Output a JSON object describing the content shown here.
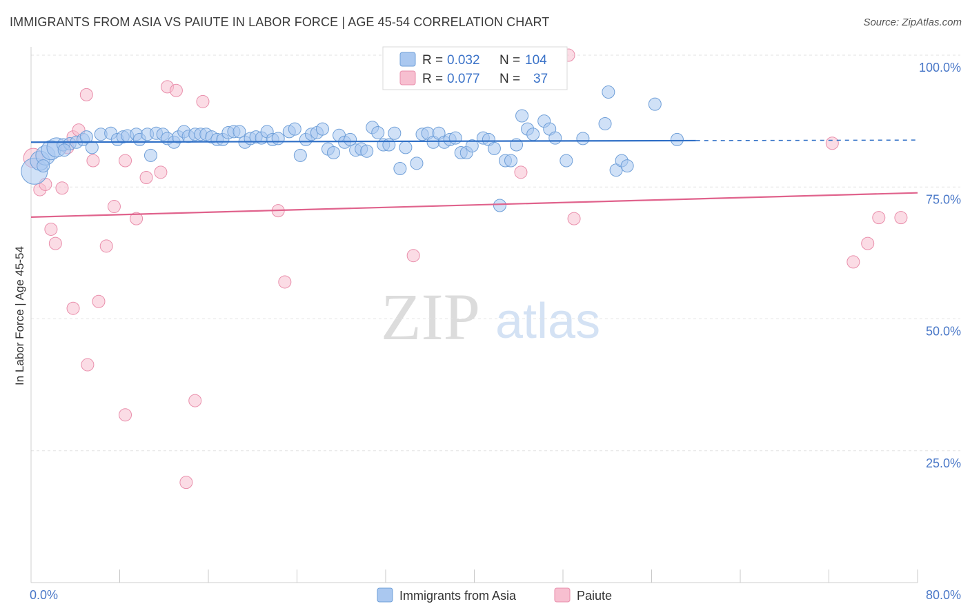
{
  "header": {
    "title": "IMMIGRANTS FROM ASIA VS PAIUTE IN LABOR FORCE | AGE 45-54 CORRELATION CHART",
    "source": "Source: ZipAtlas.com"
  },
  "watermark": {
    "zip": "ZIP",
    "atlas": "atlas"
  },
  "colors": {
    "blue_fill": "#aac8f0",
    "blue_stroke": "#6f9fd8",
    "blue_line": "#2f6fc6",
    "pink_fill": "#f7bfd0",
    "pink_stroke": "#e98eab",
    "pink_line": "#e0628c",
    "label_blue": "#4a78c8"
  },
  "chart_data": {
    "type": "scatter",
    "title": "IMMIGRANTS FROM ASIA VS PAIUTE IN LABOR FORCE | AGE 45-54 CORRELATION CHART",
    "xlabel": "",
    "ylabel": "In Labor Force | Age 45-54",
    "xlim": [
      0,
      80
    ],
    "ylim": [
      0,
      100
    ],
    "x_tick_labels": [
      "0.0%",
      "80.0%"
    ],
    "y_ticks": [
      100,
      75,
      50,
      25
    ],
    "y_tick_labels": [
      "100.0%",
      "75.0%",
      "50.0%",
      "25.0%"
    ],
    "legend": [
      {
        "name": "Immigrants from Asia",
        "r_label": "R =",
        "r_value": "0.032",
        "n_label": "N =",
        "n_value": "104"
      },
      {
        "name": "Paiute",
        "r_label": "R =",
        "r_value": "0.077",
        "n_label": "N =",
        "n_value": "37"
      }
    ],
    "series": [
      {
        "name": "Immigrants from Asia",
        "trend": {
          "x0": 0,
          "y0": 83.5,
          "x1": 80,
          "y1": 83.9,
          "solid_until": 60
        },
        "points": [
          {
            "x": 0.3,
            "y": 78,
            "s": 3
          },
          {
            "x": 0.8,
            "y": 80,
            "s": 2
          },
          {
            "x": 1.3,
            "y": 81,
            "s": 2
          },
          {
            "x": 1.8,
            "y": 82,
            "s": 2
          },
          {
            "x": 2.3,
            "y": 82.5,
            "s": 2
          },
          {
            "x": 2.9,
            "y": 83,
            "s": 1
          },
          {
            "x": 3.5,
            "y": 83.2,
            "s": 1
          },
          {
            "x": 4.1,
            "y": 83.5,
            "s": 1
          },
          {
            "x": 4.7,
            "y": 84,
            "s": 1
          },
          {
            "x": 5.5,
            "y": 82.5,
            "s": 1
          },
          {
            "x": 6.3,
            "y": 85,
            "s": 1
          },
          {
            "x": 7.2,
            "y": 85.2,
            "s": 1
          },
          {
            "x": 7.8,
            "y": 84,
            "s": 1
          },
          {
            "x": 8.3,
            "y": 84.5,
            "s": 1
          },
          {
            "x": 8.7,
            "y": 84.7,
            "s": 1
          },
          {
            "x": 9.5,
            "y": 85,
            "s": 1
          },
          {
            "x": 9.8,
            "y": 84,
            "s": 1
          },
          {
            "x": 10.5,
            "y": 85,
            "s": 1
          },
          {
            "x": 10.8,
            "y": 81,
            "s": 1
          },
          {
            "x": 11.3,
            "y": 85.2,
            "s": 1
          },
          {
            "x": 11.9,
            "y": 85,
            "s": 1
          },
          {
            "x": 12.3,
            "y": 84.2,
            "s": 1
          },
          {
            "x": 12.9,
            "y": 83.5,
            "s": 1
          },
          {
            "x": 13.3,
            "y": 84.5,
            "s": 1
          },
          {
            "x": 13.8,
            "y": 85.5,
            "s": 1
          },
          {
            "x": 14.2,
            "y": 84.6,
            "s": 1
          },
          {
            "x": 14.8,
            "y": 85,
            "s": 1
          },
          {
            "x": 15.3,
            "y": 85,
            "s": 1
          },
          {
            "x": 15.8,
            "y": 85,
            "s": 1
          },
          {
            "x": 16.3,
            "y": 84.5,
            "s": 1
          },
          {
            "x": 16.8,
            "y": 84,
            "s": 1
          },
          {
            "x": 17.3,
            "y": 84,
            "s": 1
          },
          {
            "x": 17.8,
            "y": 85.3,
            "s": 1
          },
          {
            "x": 18.3,
            "y": 85.5,
            "s": 1
          },
          {
            "x": 18.8,
            "y": 85.5,
            "s": 1
          },
          {
            "x": 19.3,
            "y": 83.5,
            "s": 1
          },
          {
            "x": 19.8,
            "y": 84.2,
            "s": 1
          },
          {
            "x": 20.3,
            "y": 84.5,
            "s": 1
          },
          {
            "x": 20.8,
            "y": 84.3,
            "s": 1
          },
          {
            "x": 21.3,
            "y": 85.5,
            "s": 1
          },
          {
            "x": 21.8,
            "y": 84,
            "s": 1
          },
          {
            "x": 22.3,
            "y": 84.2,
            "s": 1
          },
          {
            "x": 23.3,
            "y": 85.5,
            "s": 1
          },
          {
            "x": 23.8,
            "y": 86,
            "s": 1
          },
          {
            "x": 24.3,
            "y": 81,
            "s": 1
          },
          {
            "x": 24.8,
            "y": 84,
            "s": 1
          },
          {
            "x": 25.3,
            "y": 85,
            "s": 1
          },
          {
            "x": 25.8,
            "y": 85.3,
            "s": 1
          },
          {
            "x": 26.3,
            "y": 86,
            "s": 1
          },
          {
            "x": 26.8,
            "y": 82.2,
            "s": 1
          },
          {
            "x": 27.3,
            "y": 81.5,
            "s": 1
          },
          {
            "x": 27.8,
            "y": 84.8,
            "s": 1
          },
          {
            "x": 28.3,
            "y": 83.5,
            "s": 1
          },
          {
            "x": 28.8,
            "y": 84,
            "s": 1
          },
          {
            "x": 29.3,
            "y": 82,
            "s": 1
          },
          {
            "x": 29.8,
            "y": 82.2,
            "s": 1
          },
          {
            "x": 30.3,
            "y": 81.8,
            "s": 1
          },
          {
            "x": 30.8,
            "y": 86.3,
            "s": 1
          },
          {
            "x": 31.3,
            "y": 85.3,
            "s": 1
          },
          {
            "x": 31.8,
            "y": 83,
            "s": 1
          },
          {
            "x": 32.3,
            "y": 83,
            "s": 1
          },
          {
            "x": 32.8,
            "y": 85.2,
            "s": 1
          },
          {
            "x": 33.3,
            "y": 78.5,
            "s": 1
          },
          {
            "x": 33.8,
            "y": 82.5,
            "s": 1
          },
          {
            "x": 34.8,
            "y": 79.5,
            "s": 1
          },
          {
            "x": 35.3,
            "y": 85,
            "s": 1
          },
          {
            "x": 35.8,
            "y": 85.2,
            "s": 1
          },
          {
            "x": 36.3,
            "y": 83.5,
            "s": 1
          },
          {
            "x": 36.8,
            "y": 85.2,
            "s": 1
          },
          {
            "x": 37.3,
            "y": 83.5,
            "s": 1
          },
          {
            "x": 37.8,
            "y": 84,
            "s": 1
          },
          {
            "x": 38.3,
            "y": 84.3,
            "s": 1
          },
          {
            "x": 38.8,
            "y": 81.5,
            "s": 1
          },
          {
            "x": 39.3,
            "y": 81.5,
            "s": 1
          },
          {
            "x": 39.8,
            "y": 82.8,
            "s": 1
          },
          {
            "x": 40.8,
            "y": 84.3,
            "s": 1
          },
          {
            "x": 41.3,
            "y": 84,
            "s": 1
          },
          {
            "x": 41.8,
            "y": 82.3,
            "s": 1
          },
          {
            "x": 42.3,
            "y": 71.5,
            "s": 1
          },
          {
            "x": 42.8,
            "y": 80,
            "s": 1
          },
          {
            "x": 43.3,
            "y": 80,
            "s": 1
          },
          {
            "x": 43.8,
            "y": 83,
            "s": 1
          },
          {
            "x": 44.3,
            "y": 88.5,
            "s": 1
          },
          {
            "x": 44.8,
            "y": 86,
            "s": 1
          },
          {
            "x": 45.3,
            "y": 85,
            "s": 1
          },
          {
            "x": 46.3,
            "y": 87.5,
            "s": 1
          },
          {
            "x": 46.8,
            "y": 86,
            "s": 1
          },
          {
            "x": 47.3,
            "y": 84.3,
            "s": 1
          },
          {
            "x": 48.3,
            "y": 80,
            "s": 1
          },
          {
            "x": 49.8,
            "y": 84.2,
            "s": 1
          },
          {
            "x": 51.8,
            "y": 87,
            "s": 1
          },
          {
            "x": 52.1,
            "y": 93,
            "s": 1
          },
          {
            "x": 52.8,
            "y": 78.2,
            "s": 1
          },
          {
            "x": 53.3,
            "y": 80,
            "s": 1
          },
          {
            "x": 53.8,
            "y": 79,
            "s": 1
          },
          {
            "x": 56.3,
            "y": 90.7,
            "s": 1
          },
          {
            "x": 58.3,
            "y": 84,
            "s": 1
          },
          {
            "x": 1.1,
            "y": 79,
            "s": 1
          },
          {
            "x": 3.0,
            "y": 82,
            "s": 1
          },
          {
            "x": 5.0,
            "y": 84.5,
            "s": 1
          }
        ]
      },
      {
        "name": "Paiute",
        "trend": {
          "x0": 0,
          "y0": 69.3,
          "x1": 80,
          "y1": 73.9,
          "solid_until": 80
        },
        "points": [
          {
            "x": 0.2,
            "y": 80.5,
            "s": 2
          },
          {
            "x": 0.8,
            "y": 74.5,
            "s": 1
          },
          {
            "x": 1.3,
            "y": 75.5,
            "s": 1
          },
          {
            "x": 1.8,
            "y": 67,
            "s": 1
          },
          {
            "x": 2.2,
            "y": 64.3,
            "s": 1
          },
          {
            "x": 2.8,
            "y": 74.8,
            "s": 1
          },
          {
            "x": 3.3,
            "y": 82.5,
            "s": 1
          },
          {
            "x": 3.8,
            "y": 84.5,
            "s": 1
          },
          {
            "x": 3.8,
            "y": 52,
            "s": 1
          },
          {
            "x": 4.3,
            "y": 85.8,
            "s": 1
          },
          {
            "x": 5.0,
            "y": 92.5,
            "s": 1
          },
          {
            "x": 5.1,
            "y": 41.3,
            "s": 1
          },
          {
            "x": 5.6,
            "y": 80,
            "s": 1
          },
          {
            "x": 6.1,
            "y": 53.3,
            "s": 1
          },
          {
            "x": 6.8,
            "y": 63.8,
            "s": 1
          },
          {
            "x": 7.5,
            "y": 71.3,
            "s": 1
          },
          {
            "x": 8.5,
            "y": 80,
            "s": 1
          },
          {
            "x": 8.5,
            "y": 31.8,
            "s": 1
          },
          {
            "x": 9.5,
            "y": 69,
            "s": 1
          },
          {
            "x": 10.4,
            "y": 76.8,
            "s": 1
          },
          {
            "x": 11.7,
            "y": 77.8,
            "s": 1
          },
          {
            "x": 12.3,
            "y": 94,
            "s": 1
          },
          {
            "x": 13.1,
            "y": 93.3,
            "s": 1
          },
          {
            "x": 14.0,
            "y": 19,
            "s": 1
          },
          {
            "x": 14.8,
            "y": 34.5,
            "s": 1
          },
          {
            "x": 15.5,
            "y": 91.2,
            "s": 1
          },
          {
            "x": 22.3,
            "y": 70.5,
            "s": 1
          },
          {
            "x": 22.9,
            "y": 57,
            "s": 1
          },
          {
            "x": 34.5,
            "y": 62,
            "s": 1
          },
          {
            "x": 44.2,
            "y": 77.8,
            "s": 1
          },
          {
            "x": 48.5,
            "y": 100,
            "s": 1
          },
          {
            "x": 49.0,
            "y": 69,
            "s": 1
          },
          {
            "x": 72.3,
            "y": 83.3,
            "s": 1
          },
          {
            "x": 74.2,
            "y": 60.8,
            "s": 1
          },
          {
            "x": 75.5,
            "y": 64.3,
            "s": 1
          },
          {
            "x": 76.5,
            "y": 69.2,
            "s": 1
          },
          {
            "x": 78.5,
            "y": 69.2,
            "s": 1
          }
        ]
      }
    ]
  }
}
